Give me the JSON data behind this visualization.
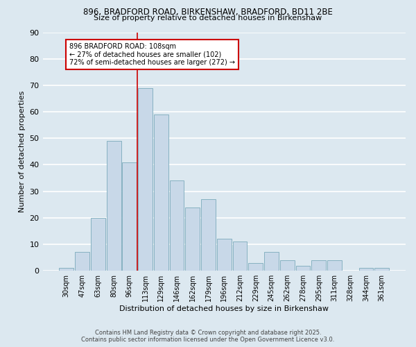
{
  "title1": "896, BRADFORD ROAD, BIRKENSHAW, BRADFORD, BD11 2BE",
  "title2": "Size of property relative to detached houses in Birkenshaw",
  "xlabel": "Distribution of detached houses by size in Birkenshaw",
  "ylabel": "Number of detached properties",
  "categories": [
    "30sqm",
    "47sqm",
    "63sqm",
    "80sqm",
    "96sqm",
    "113sqm",
    "129sqm",
    "146sqm",
    "162sqm",
    "179sqm",
    "196sqm",
    "212sqm",
    "229sqm",
    "245sqm",
    "262sqm",
    "278sqm",
    "295sqm",
    "311sqm",
    "328sqm",
    "344sqm",
    "361sqm"
  ],
  "values": [
    1,
    7,
    20,
    49,
    41,
    69,
    59,
    34,
    24,
    27,
    12,
    11,
    3,
    7,
    4,
    2,
    4,
    4,
    0,
    1,
    1
  ],
  "bar_color": "#c8d8e8",
  "bar_edge_color": "#7aaabb",
  "bg_color": "#dce8f0",
  "grid_color": "#ffffff",
  "annotation_text_line1": "896 BRADFORD ROAD: 108sqm",
  "annotation_text_line2": "← 27% of detached houses are smaller (102)",
  "annotation_text_line3": "72% of semi-detached houses are larger (272) →",
  "annotation_box_color": "#ffffff",
  "annotation_box_edge": "#cc0000",
  "vline_color": "#cc0000",
  "footer1": "Contains HM Land Registry data © Crown copyright and database right 2025.",
  "footer2": "Contains public sector information licensed under the Open Government Licence v3.0.",
  "ylim": [
    0,
    90
  ],
  "yticks": [
    0,
    10,
    20,
    30,
    40,
    50,
    60,
    70,
    80,
    90
  ],
  "vline_x": 4.5
}
